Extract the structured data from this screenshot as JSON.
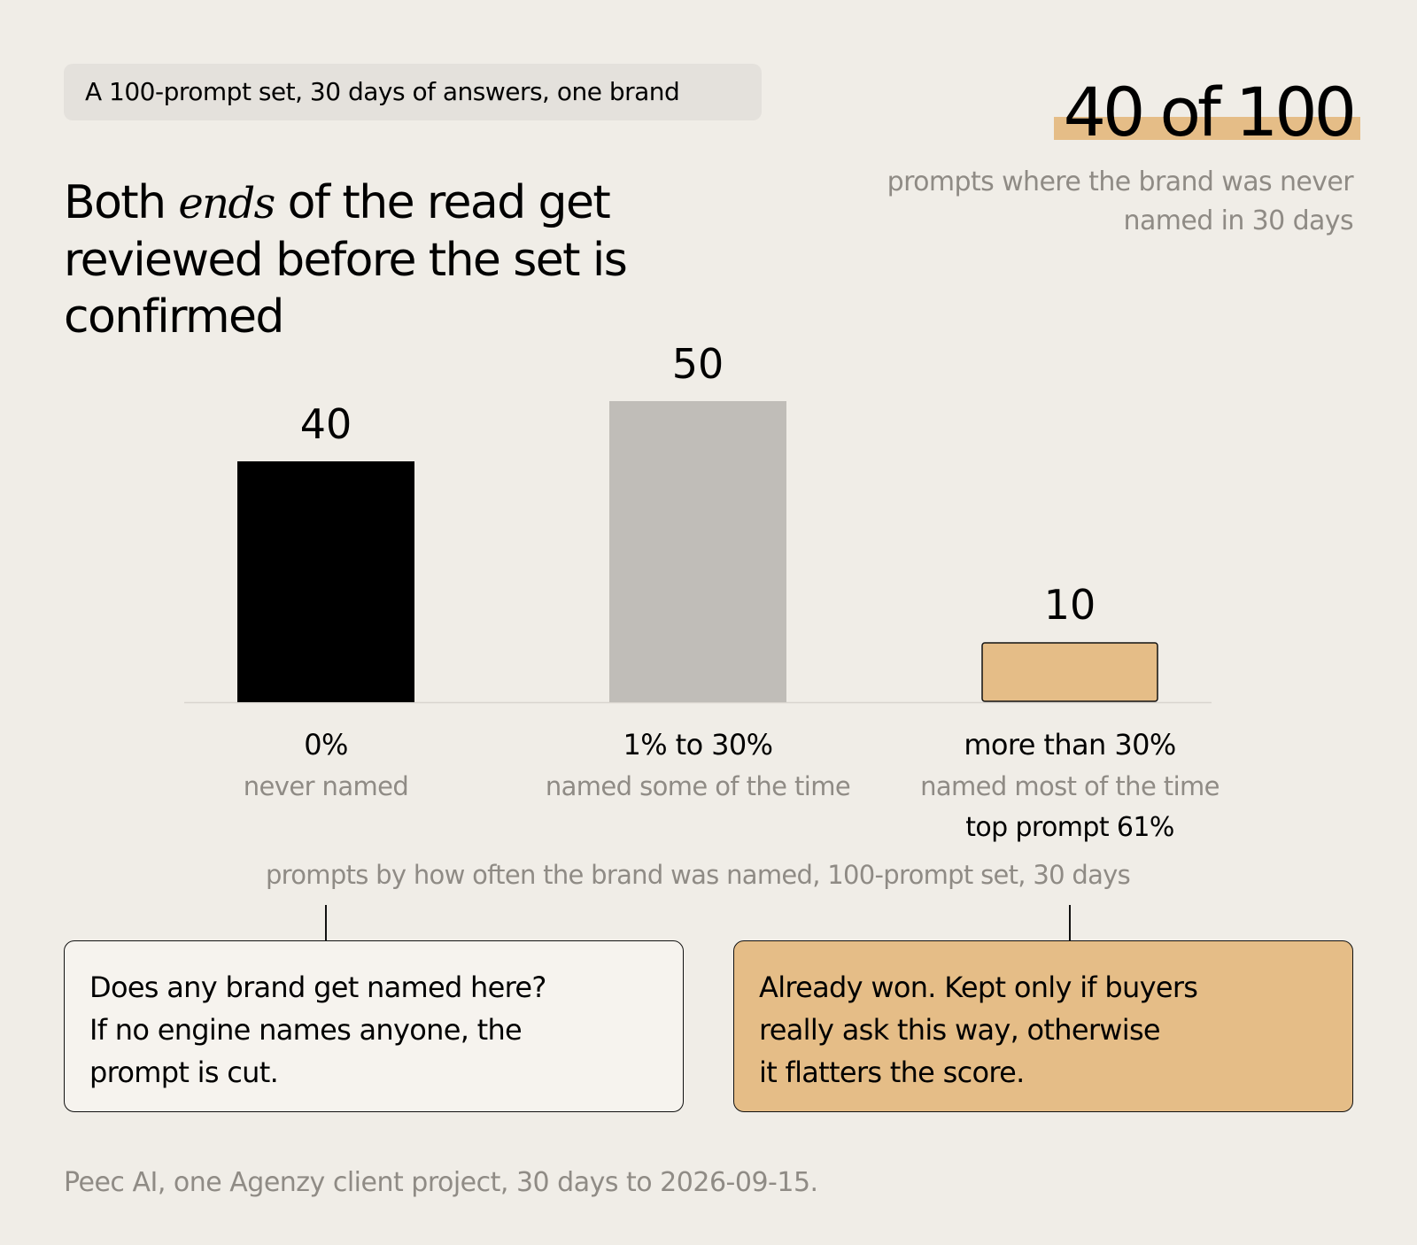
{
  "tag": "A 100-prompt set, 30 days of answers, one brand",
  "headline": {
    "part1": "Both ",
    "emphasis": "ends",
    "part2": " of the read get reviewed before the set is confirmed"
  },
  "stat": {
    "value": "40 of 100",
    "subtitle": "prompts where the brand was never named in 30 days",
    "highlight_color": "#e5bd87"
  },
  "chart_data": {
    "type": "bar",
    "categories": [
      "0%",
      "1% to 30%",
      "more than 30%"
    ],
    "descriptions": [
      "never named",
      "named some of the time",
      "named most of the time"
    ],
    "values": [
      40,
      50,
      10
    ],
    "value_labels": [
      "40",
      "50",
      "10"
    ],
    "extra_label": {
      "category": "more than 30%",
      "text": "top prompt 61%"
    },
    "colors": [
      "#000000",
      "#c0bdb8",
      "#e5bd87"
    ],
    "xlabel": "prompts by how often the brand was named, 100-prompt set, 30 days",
    "ylim": [
      0,
      50
    ],
    "grid": false
  },
  "notes": {
    "left": {
      "lines": [
        "Does any brand get named here?",
        "If no engine names anyone, the",
        "prompt is cut."
      ],
      "background": "#f6f3ee"
    },
    "right": {
      "lines": [
        "Already won. Kept only if buyers",
        "really ask this way, otherwise",
        "it flatters the score."
      ],
      "background": "#e5bd87"
    }
  },
  "caption": "Peec AI, one Agenzy client project, 30 days to 2026-09-15."
}
